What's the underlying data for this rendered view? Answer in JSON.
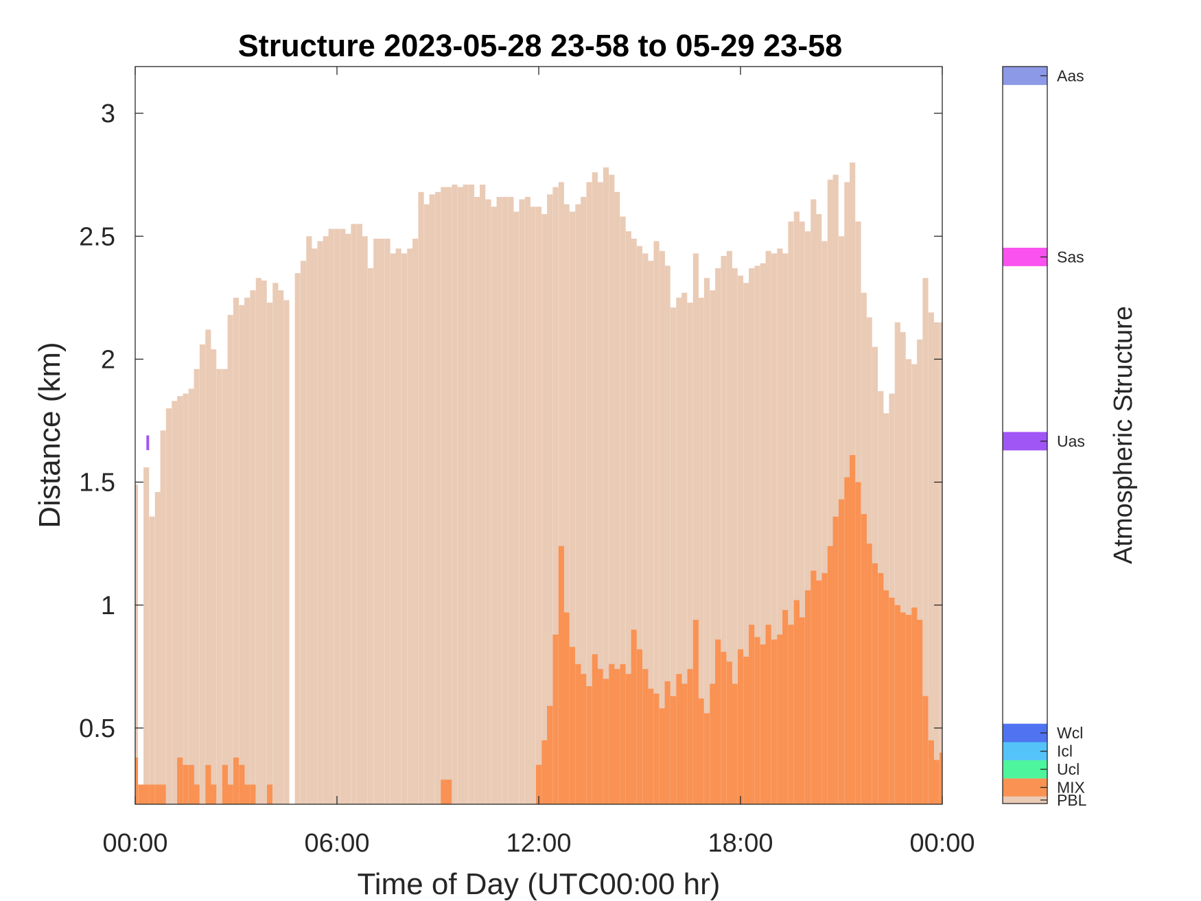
{
  "chart_data": {
    "type": "bar",
    "title": "Structure 2023-05-28 23-58 to 05-29 23-58",
    "xlabel": "Time of Day (UTC00:00 hr)",
    "ylabel": "Distance (km)",
    "xlim": [
      0,
      24
    ],
    "ylim": [
      0.19,
      3.19
    ],
    "xticks": [
      0,
      6,
      12,
      18,
      24
    ],
    "xtick_labels": [
      "00:00",
      "06:00",
      "12:00",
      "18:00",
      "00:00"
    ],
    "yticks": [
      0.5,
      1,
      1.5,
      2,
      2.5,
      3
    ],
    "ytick_labels": [
      "0.5",
      "1",
      "1.5",
      "2",
      "2.5",
      "3"
    ],
    "grid": false,
    "colorbar": {
      "label": "Atmospheric Structure",
      "classes": [
        {
          "name": "PBL",
          "color": "#EACBB6",
          "lo": 0,
          "hi": 0.23
        },
        {
          "name": "MIX",
          "color": "#F99253",
          "lo": 0.23,
          "hi": 0.82
        },
        {
          "name": "Ucl",
          "color": "#4DF59D",
          "lo": 0.82,
          "hi": 1.41
        },
        {
          "name": "Icl",
          "color": "#54C3F7",
          "lo": 1.41,
          "hi": 2.0
        },
        {
          "name": "Wcl",
          "color": "#4F73F1",
          "lo": 2.0,
          "hi": 2.6
        },
        {
          "name": "Uas",
          "color": "#A055F5",
          "lo": 11.5,
          "hi": 12.1
        },
        {
          "name": "Sas",
          "color": "#FA52EE",
          "lo": 17.5,
          "hi": 18.1
        },
        {
          "name": "Aas",
          "color": "#8C99E7",
          "lo": 23.4,
          "hi": 24.0
        }
      ],
      "range": [
        0,
        24
      ]
    },
    "series": [
      {
        "name": "PBL",
        "color": "#EACBB6",
        "points": [
          [
            0.0,
            1.49
          ],
          [
            0.33,
            1.56
          ],
          [
            0.5,
            1.36
          ],
          [
            0.67,
            1.46
          ],
          [
            0.83,
            1.71
          ],
          [
            1.0,
            1.8
          ],
          [
            1.17,
            1.83
          ],
          [
            1.33,
            1.85
          ],
          [
            1.5,
            1.86
          ],
          [
            1.67,
            1.88
          ],
          [
            1.83,
            1.96
          ],
          [
            2.0,
            2.06
          ],
          [
            2.17,
            2.12
          ],
          [
            2.33,
            2.04
          ],
          [
            2.5,
            1.96
          ],
          [
            2.67,
            1.96
          ],
          [
            2.83,
            2.18
          ],
          [
            3.0,
            2.25
          ],
          [
            3.17,
            2.22
          ],
          [
            3.33,
            2.25
          ],
          [
            3.5,
            2.28
          ],
          [
            3.67,
            2.33
          ],
          [
            3.83,
            2.32
          ],
          [
            4.0,
            2.23
          ],
          [
            4.17,
            2.31
          ],
          [
            4.33,
            2.28
          ],
          [
            4.5,
            2.24
          ],
          [
            4.83,
            2.35
          ],
          [
            5.0,
            2.4
          ],
          [
            5.17,
            2.5
          ],
          [
            5.33,
            2.45
          ],
          [
            5.5,
            2.48
          ],
          [
            5.67,
            2.5
          ],
          [
            5.83,
            2.53
          ],
          [
            6.0,
            2.53
          ],
          [
            6.17,
            2.53
          ],
          [
            6.33,
            2.51
          ],
          [
            6.5,
            2.55
          ],
          [
            6.67,
            2.55
          ],
          [
            6.83,
            2.5
          ],
          [
            7.0,
            2.37
          ],
          [
            7.17,
            2.49
          ],
          [
            7.33,
            2.49
          ],
          [
            7.5,
            2.49
          ],
          [
            7.67,
            2.43
          ],
          [
            7.83,
            2.45
          ],
          [
            8.0,
            2.43
          ],
          [
            8.17,
            2.45
          ],
          [
            8.33,
            2.49
          ],
          [
            8.5,
            2.68
          ],
          [
            8.67,
            2.63
          ],
          [
            8.83,
            2.67
          ],
          [
            9.0,
            2.68
          ],
          [
            9.17,
            2.7
          ],
          [
            9.33,
            2.7
          ],
          [
            9.5,
            2.71
          ],
          [
            9.67,
            2.7
          ],
          [
            9.83,
            2.71
          ],
          [
            10.0,
            2.71
          ],
          [
            10.17,
            2.66
          ],
          [
            10.33,
            2.71
          ],
          [
            10.5,
            2.65
          ],
          [
            10.67,
            2.62
          ],
          [
            10.83,
            2.66
          ],
          [
            11.0,
            2.66
          ],
          [
            11.17,
            2.66
          ],
          [
            11.33,
            2.6
          ],
          [
            11.5,
            2.65
          ],
          [
            11.67,
            2.66
          ],
          [
            11.83,
            2.62
          ],
          [
            12.0,
            2.62
          ],
          [
            12.17,
            2.59
          ],
          [
            12.33,
            2.67
          ],
          [
            12.5,
            2.7
          ],
          [
            12.67,
            2.72
          ],
          [
            12.83,
            2.63
          ],
          [
            13.0,
            2.6
          ],
          [
            13.17,
            2.63
          ],
          [
            13.33,
            2.66
          ],
          [
            13.5,
            2.72
          ],
          [
            13.67,
            2.76
          ],
          [
            13.83,
            2.72
          ],
          [
            14.0,
            2.78
          ],
          [
            14.17,
            2.75
          ],
          [
            14.33,
            2.68
          ],
          [
            14.5,
            2.58
          ],
          [
            14.67,
            2.52
          ],
          [
            14.83,
            2.49
          ],
          [
            15.0,
            2.46
          ],
          [
            15.17,
            2.43
          ],
          [
            15.33,
            2.4
          ],
          [
            15.5,
            2.48
          ],
          [
            15.67,
            2.44
          ],
          [
            15.83,
            2.38
          ],
          [
            16.0,
            2.21
          ],
          [
            16.17,
            2.25
          ],
          [
            16.33,
            2.27
          ],
          [
            16.5,
            2.23
          ],
          [
            16.67,
            2.43
          ],
          [
            16.83,
            2.25
          ],
          [
            17.0,
            2.33
          ],
          [
            17.17,
            2.28
          ],
          [
            17.33,
            2.37
          ],
          [
            17.5,
            2.42
          ],
          [
            17.67,
            2.44
          ],
          [
            17.83,
            2.37
          ],
          [
            18.0,
            2.34
          ],
          [
            18.17,
            2.31
          ],
          [
            18.33,
            2.37
          ],
          [
            18.5,
            2.38
          ],
          [
            18.67,
            2.39
          ],
          [
            18.83,
            2.44
          ],
          [
            19.0,
            2.43
          ],
          [
            19.17,
            2.45
          ],
          [
            19.33,
            2.43
          ],
          [
            19.5,
            2.56
          ],
          [
            19.67,
            2.6
          ],
          [
            19.83,
            2.56
          ],
          [
            20.0,
            2.52
          ],
          [
            20.17,
            2.65
          ],
          [
            20.33,
            2.59
          ],
          [
            20.5,
            2.48
          ],
          [
            20.67,
            2.73
          ],
          [
            20.83,
            2.75
          ],
          [
            21.0,
            2.5
          ],
          [
            21.17,
            2.72
          ],
          [
            21.33,
            2.8
          ],
          [
            21.5,
            2.56
          ],
          [
            21.67,
            2.27
          ],
          [
            21.83,
            2.17
          ],
          [
            22.0,
            2.05
          ],
          [
            22.17,
            1.87
          ],
          [
            22.33,
            1.78
          ],
          [
            22.5,
            1.86
          ],
          [
            22.67,
            2.15
          ],
          [
            22.83,
            2.11
          ],
          [
            23.0,
            2.0
          ],
          [
            23.17,
            1.98
          ],
          [
            23.33,
            2.08
          ],
          [
            23.5,
            2.33
          ],
          [
            23.67,
            2.19
          ],
          [
            23.83,
            2.15
          ],
          [
            24.0,
            2.15
          ]
        ]
      },
      {
        "name": "MIX",
        "color": "#F99253",
        "points": [
          [
            0.0,
            0.38
          ],
          [
            0.17,
            0.27
          ],
          [
            0.33,
            0.27
          ],
          [
            0.5,
            0.27
          ],
          [
            0.67,
            0.27
          ],
          [
            0.83,
            0.27
          ],
          [
            1.0,
            0.19
          ],
          [
            1.17,
            0.19
          ],
          [
            1.33,
            0.38
          ],
          [
            1.5,
            0.35
          ],
          [
            1.67,
            0.35
          ],
          [
            1.83,
            0.27
          ],
          [
            2.0,
            0.19
          ],
          [
            2.17,
            0.35
          ],
          [
            2.33,
            0.27
          ],
          [
            2.5,
            0.19
          ],
          [
            2.67,
            0.35
          ],
          [
            2.83,
            0.27
          ],
          [
            3.0,
            0.38
          ],
          [
            3.17,
            0.35
          ],
          [
            3.33,
            0.27
          ],
          [
            3.5,
            0.27
          ],
          [
            3.67,
            0.19
          ],
          [
            4.0,
            0.27
          ],
          [
            4.17,
            0.19
          ],
          [
            9.17,
            0.29
          ],
          [
            9.33,
            0.29
          ],
          [
            9.5,
            0.19
          ],
          [
            12.0,
            0.35
          ],
          [
            12.17,
            0.45
          ],
          [
            12.33,
            0.59
          ],
          [
            12.5,
            0.88
          ],
          [
            12.67,
            1.24
          ],
          [
            12.83,
            0.97
          ],
          [
            13.0,
            0.83
          ],
          [
            13.17,
            0.76
          ],
          [
            13.33,
            0.72
          ],
          [
            13.5,
            0.67
          ],
          [
            13.67,
            0.8
          ],
          [
            13.83,
            0.74
          ],
          [
            14.0,
            0.7
          ],
          [
            14.17,
            0.76
          ],
          [
            14.33,
            0.74
          ],
          [
            14.5,
            0.76
          ],
          [
            14.67,
            0.72
          ],
          [
            14.83,
            0.9
          ],
          [
            15.0,
            0.82
          ],
          [
            15.17,
            0.74
          ],
          [
            15.33,
            0.66
          ],
          [
            15.5,
            0.64
          ],
          [
            15.67,
            0.58
          ],
          [
            15.83,
            0.69
          ],
          [
            16.0,
            0.63
          ],
          [
            16.17,
            0.72
          ],
          [
            16.33,
            0.68
          ],
          [
            16.5,
            0.74
          ],
          [
            16.67,
            0.94
          ],
          [
            16.83,
            0.62
          ],
          [
            17.0,
            0.56
          ],
          [
            17.17,
            0.68
          ],
          [
            17.33,
            0.86
          ],
          [
            17.5,
            0.81
          ],
          [
            17.67,
            0.77
          ],
          [
            17.83,
            0.68
          ],
          [
            18.0,
            0.82
          ],
          [
            18.17,
            0.79
          ],
          [
            18.33,
            0.92
          ],
          [
            18.5,
            0.87
          ],
          [
            18.67,
            0.84
          ],
          [
            18.83,
            0.92
          ],
          [
            19.0,
            0.86
          ],
          [
            19.17,
            0.88
          ],
          [
            19.33,
            0.98
          ],
          [
            19.5,
            0.92
          ],
          [
            19.67,
            1.02
          ],
          [
            19.83,
            0.95
          ],
          [
            20.0,
            1.06
          ],
          [
            20.17,
            1.14
          ],
          [
            20.33,
            1.1
          ],
          [
            20.5,
            1.13
          ],
          [
            20.67,
            1.24
          ],
          [
            20.83,
            1.36
          ],
          [
            21.0,
            1.43
          ],
          [
            21.17,
            1.52
          ],
          [
            21.33,
            1.61
          ],
          [
            21.5,
            1.5
          ],
          [
            21.67,
            1.37
          ],
          [
            21.83,
            1.25
          ],
          [
            22.0,
            1.17
          ],
          [
            22.17,
            1.13
          ],
          [
            22.33,
            1.06
          ],
          [
            22.5,
            1.03
          ],
          [
            22.67,
            1.0
          ],
          [
            22.83,
            0.97
          ],
          [
            23.0,
            0.96
          ],
          [
            23.17,
            0.99
          ],
          [
            23.33,
            0.94
          ],
          [
            23.5,
            0.63
          ],
          [
            23.67,
            0.45
          ],
          [
            23.83,
            0.37
          ],
          [
            24.0,
            0.4
          ]
        ]
      },
      {
        "name": "Uas",
        "color": "#A055F5",
        "points": [
          [
            0.17,
            1.63
          ]
        ]
      }
    ]
  }
}
